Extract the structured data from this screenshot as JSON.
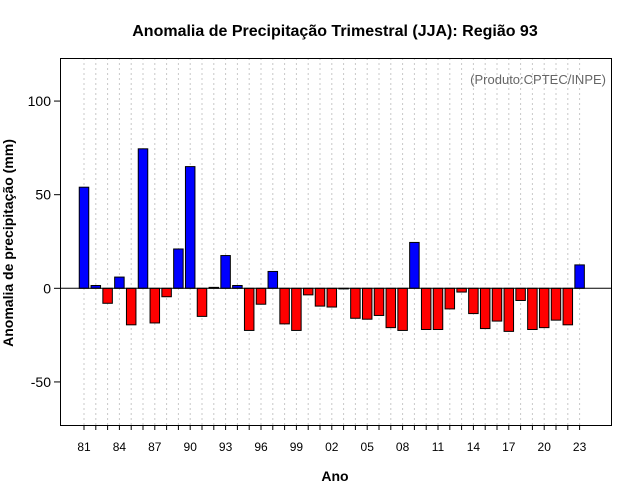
{
  "chart_data": {
    "type": "bar",
    "title": "Anomalia de Precipitação Trimestral (JJA): Região 93",
    "xlabel": "Ano",
    "ylabel": "Anomalia de precipitação (mm)",
    "annotation": "(Produto:CPTEC/INPE)",
    "ylim": [
      -73,
      123
    ],
    "yticks": [
      -50,
      0,
      50,
      100
    ],
    "grid": true,
    "positive_color": "#0000ff",
    "negative_color": "#ff0000",
    "categories": [
      "81",
      "82",
      "83",
      "84",
      "85",
      "86",
      "87",
      "88",
      "89",
      "90",
      "91",
      "92",
      "93",
      "94",
      "95",
      "96",
      "97",
      "98",
      "99",
      "00",
      "01",
      "02",
      "03",
      "04",
      "05",
      "06",
      "07",
      "08",
      "09",
      "10",
      "11",
      "12",
      "13",
      "14",
      "15",
      "16",
      "17",
      "18",
      "19",
      "20",
      "21",
      "22",
      "23"
    ],
    "tick_labels": [
      "81",
      "84",
      "87",
      "90",
      "93",
      "96",
      "99",
      "02",
      "05",
      "08",
      "11",
      "14",
      "17",
      "20",
      "23"
    ],
    "values": [
      54,
      1.5,
      -8,
      6,
      -19.5,
      74.5,
      -18.5,
      -4.5,
      21,
      65,
      -15,
      0.5,
      17.5,
      1.5,
      -22.5,
      -8.5,
      9,
      -19,
      -22.5,
      -3.5,
      -9.5,
      -10,
      0,
      -16,
      -16.5,
      -14.5,
      -21,
      -22.5,
      24.5,
      -22,
      -22,
      -11,
      -2,
      -13.5,
      -21.5,
      -17.5,
      -23,
      -6.5,
      -22,
      -21,
      -17,
      -19.5,
      12.5
    ]
  }
}
